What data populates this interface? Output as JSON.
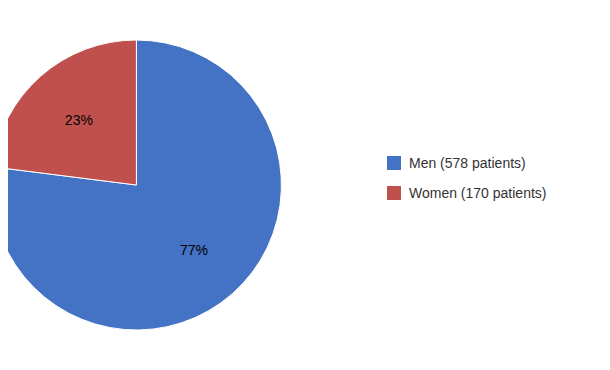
{
  "chart_data": {
    "type": "pie",
    "categories": [
      "Men (578 patients)",
      "Women (170 patients)"
    ],
    "values": [
      77,
      23
    ],
    "value_labels": [
      "77%",
      "23%"
    ],
    "colors": [
      "#4472C4",
      "#C0504D"
    ],
    "data_labels": true,
    "legend": "right"
  }
}
